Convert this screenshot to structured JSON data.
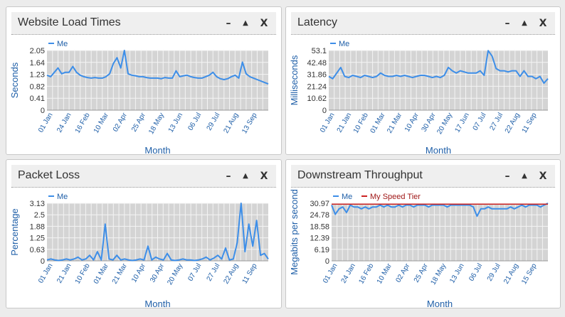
{
  "colors": {
    "me": "#3d8ee8",
    "tier": "#cc2222",
    "plot_bg": "#d4d4d4",
    "grid": "#f4f4f4",
    "axis_text": "#1f5fa8"
  },
  "controls": {
    "minimize": "–",
    "maximize": "▲",
    "close": "X"
  },
  "panels": [
    {
      "title": "Website Load Times",
      "chart_data": {
        "type": "line",
        "title": "Website Load Times",
        "xlabel": "Month",
        "ylabel": "Seconds",
        "ylim": [
          0,
          2.05
        ],
        "yticks": [
          "0",
          "0.41",
          "0.82",
          "1.23",
          "1.64",
          "2.05"
        ],
        "xticks": [
          "01 Jan",
          "24 Jan",
          "16 Feb",
          "10 Mar",
          "02 Apr",
          "25 Apr",
          "18 May",
          "13 Jun",
          "06 Jul",
          "29 Jul",
          "21 Aug",
          "13 Sep"
        ],
        "legend": "top-left",
        "series": [
          {
            "name": "Me",
            "values": [
              1.2,
              1.15,
              1.3,
              1.45,
              1.25,
              1.3,
              1.3,
              1.5,
              1.3,
              1.2,
              1.15,
              1.12,
              1.1,
              1.12,
              1.1,
              1.1,
              1.15,
              1.25,
              1.6,
              1.8,
              1.45,
              2.05,
              1.25,
              1.2,
              1.18,
              1.15,
              1.15,
              1.12,
              1.1,
              1.1,
              1.1,
              1.08,
              1.12,
              1.1,
              1.1,
              1.35,
              1.15,
              1.18,
              1.2,
              1.15,
              1.12,
              1.1,
              1.1,
              1.15,
              1.2,
              1.3,
              1.15,
              1.08,
              1.05,
              1.08,
              1.15,
              1.2,
              1.1,
              1.65,
              1.25,
              1.15,
              1.1,
              1.05,
              1.0,
              0.95,
              0.9
            ]
          }
        ]
      }
    },
    {
      "title": "Latency",
      "chart_data": {
        "type": "line",
        "title": "Latency",
        "xlabel": "Month",
        "ylabel": "Milliseconds",
        "ylim": [
          0,
          53.1
        ],
        "yticks": [
          "0",
          "10.62",
          "21.24",
          "31.86",
          "42.48",
          "53.1"
        ],
        "xticks": [
          "01 Jan",
          "21 Jan",
          "10 Feb",
          "01 Mar",
          "21 Mar",
          "10 Apr",
          "30 Apr",
          "20 May",
          "17 Jun",
          "07 Jul",
          "27 Jul",
          "22 Aug",
          "11 Sep"
        ],
        "legend": "top-left",
        "series": [
          {
            "name": "Me",
            "values": [
              30,
              28,
              33,
              38,
              30,
              29,
              31,
              30,
              29,
              31,
              30,
              29,
              30,
              33,
              31,
              30,
              30,
              31,
              30,
              31,
              30,
              29,
              30,
              31,
              31,
              30,
              29,
              30,
              29,
              31,
              38,
              35,
              33,
              35,
              34,
              33,
              33,
              33,
              35,
              31,
              53,
              48,
              37,
              35,
              35,
              34,
              35,
              35,
              30,
              35,
              30,
              30,
              28,
              30,
              24,
              28
            ]
          }
        ]
      }
    },
    {
      "title": "Packet Loss",
      "chart_data": {
        "type": "line",
        "title": "Packet Loss",
        "xlabel": "Month",
        "ylabel": "Percentage",
        "ylim": [
          0,
          3.13
        ],
        "yticks": [
          "0",
          "0.63",
          "1.25",
          "1.88",
          "2.5",
          "3.13"
        ],
        "xticks": [
          "01 Jan",
          "21 Jan",
          "10 Feb",
          "01 Mar",
          "21 Mar",
          "10 Apr",
          "30 Apr",
          "20 May",
          "07 Jul",
          "27 Jul",
          "22 Aug",
          "11 Sep"
        ],
        "legend": "top-left",
        "series": [
          {
            "name": "Me",
            "values": [
              0.05,
              0.1,
              0.05,
              0.02,
              0.05,
              0.1,
              0.05,
              0.1,
              0.2,
              0.05,
              0.1,
              0.3,
              0.05,
              0.5,
              0.05,
              2.0,
              0.1,
              0.05,
              0.3,
              0.05,
              0.1,
              0.05,
              0.02,
              0.05,
              0.1,
              0.05,
              0.8,
              0.05,
              0.2,
              0.1,
              0.05,
              0.4,
              0.05,
              0.02,
              0.05,
              0.1,
              0.05,
              0.05,
              0.02,
              0.05,
              0.1,
              0.2,
              0.05,
              0.15,
              0.3,
              0.1,
              0.7,
              0.05,
              0.1,
              1.0,
              3.13,
              0.5,
              2.0,
              0.8,
              2.2,
              0.3,
              0.4,
              0.1
            ]
          }
        ]
      }
    },
    {
      "title": "Downstream Throughput",
      "chart_data": {
        "type": "line",
        "title": "Downstream Throughput",
        "xlabel": "Month",
        "ylabel": "Megabits per second",
        "ylim": [
          0,
          30.97
        ],
        "yticks": [
          "0",
          "6.19",
          "12.39",
          "18.58",
          "24.78",
          "30.97"
        ],
        "xticks": [
          "01 Jan",
          "24 Jan",
          "16 Feb",
          "10 Mar",
          "02 Apr",
          "25 Apr",
          "18 May",
          "13 Jun",
          "06 Jul",
          "29 Jul",
          "21 Aug",
          "15 Sep"
        ],
        "legend": "top-left",
        "series": [
          {
            "name": "Me",
            "values": [
              30,
              25,
              28,
              29,
              26,
              30,
              29,
              29,
              28,
              29,
              28,
              29,
              29,
              30,
              29,
              30,
              29,
              29,
              30,
              29,
              30,
              30,
              29,
              30,
              30,
              30,
              29,
              30,
              30,
              30,
              30,
              29,
              30,
              30,
              30,
              30,
              30,
              30,
              29,
              24,
              28,
              28,
              29,
              28,
              28,
              28,
              28,
              28,
              29,
              28,
              29,
              30,
              29,
              30,
              30,
              30,
              29,
              30,
              31
            ]
          },
          {
            "name": "My Speed Tier",
            "values": [
              30.5,
              30.5,
              30.5,
              30.5,
              30.5,
              30.5,
              30.5,
              30.5,
              30.5,
              30.5,
              30.5,
              30.5,
              30.5,
              30.5,
              30.5,
              30.5,
              30.5,
              30.5,
              30.5,
              30.5,
              30.5,
              30.5,
              30.5,
              30.5,
              30.5,
              30.5,
              30.5,
              30.5,
              30.5,
              30.5,
              30.5,
              30.5,
              30.5,
              30.5,
              30.5,
              30.5,
              30.5,
              30.5,
              30.5,
              30.5,
              30.5,
              30.5,
              30.5,
              30.5,
              30.5,
              30.5,
              30.5,
              30.5,
              30.5,
              30.5,
              30.5,
              30.5,
              30.5,
              30.5,
              30.5,
              30.5,
              30.5,
              30.5,
              30.5
            ]
          }
        ]
      }
    }
  ]
}
